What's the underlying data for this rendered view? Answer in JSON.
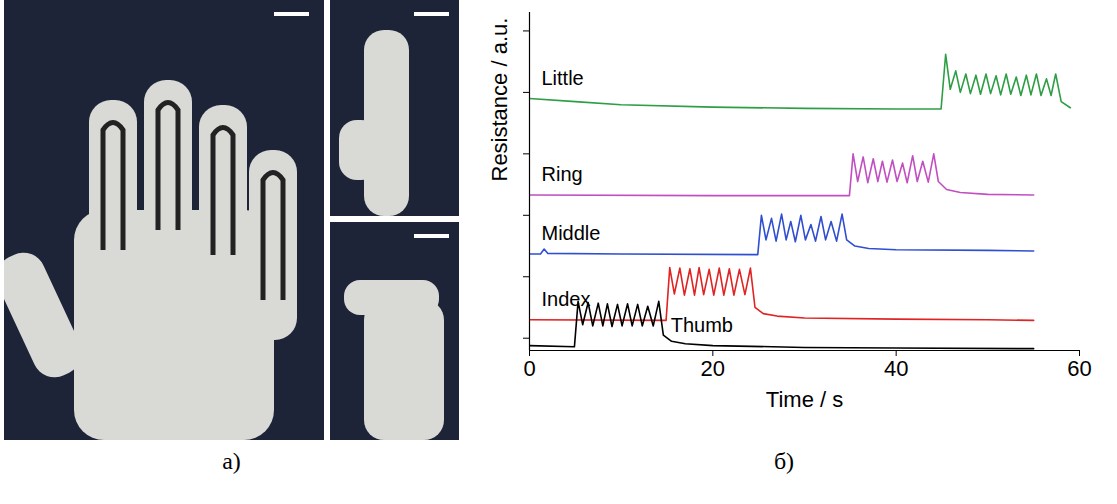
{
  "chart_data": {
    "type": "line",
    "x_label": "Time / s",
    "y_label": "Resistance / a.u.",
    "xlim": [
      0,
      60
    ],
    "xticks": [
      0,
      20,
      40,
      60
    ],
    "ylim": [
      -0.2,
      5.3
    ],
    "yticks": [
      0,
      1,
      2,
      3,
      4,
      5
    ],
    "tick_labels": "x",
    "series": [
      {
        "name": "Little",
        "color": "#2e9e44",
        "x": [
          0,
          5,
          10,
          20,
          30,
          40,
          44.9,
          45.4,
          45.9,
          46.5,
          47.0,
          47.6,
          48.1,
          48.7,
          49.2,
          49.8,
          50.3,
          50.9,
          51.4,
          52.0,
          52.5,
          53.1,
          53.6,
          54.2,
          54.7,
          55.3,
          55.8,
          56.4,
          56.9,
          57.4,
          58.0,
          59.0
        ],
        "values": [
          3.9,
          3.85,
          3.8,
          3.76,
          3.74,
          3.73,
          3.73,
          4.62,
          4.05,
          4.35,
          4.0,
          4.3,
          3.98,
          4.28,
          3.97,
          4.3,
          3.98,
          4.27,
          3.96,
          4.3,
          3.97,
          4.25,
          3.95,
          4.28,
          3.96,
          4.3,
          3.95,
          4.22,
          3.95,
          4.3,
          3.85,
          3.75
        ]
      },
      {
        "name": "Ring",
        "color": "#c24fc2",
        "x": [
          0,
          20,
          34.9,
          35.3,
          35.8,
          36.4,
          36.9,
          37.5,
          38.0,
          38.5,
          39.0,
          39.6,
          40.1,
          40.7,
          41.2,
          41.8,
          42.3,
          42.9,
          43.5,
          44.1,
          44.6,
          45.5,
          47,
          50,
          55
        ],
        "values": [
          2.33,
          2.32,
          2.32,
          3.0,
          2.55,
          2.95,
          2.53,
          2.92,
          2.55,
          2.88,
          2.54,
          2.9,
          2.55,
          2.85,
          2.53,
          2.97,
          2.55,
          2.88,
          2.54,
          3.0,
          2.55,
          2.42,
          2.37,
          2.34,
          2.33
        ]
      },
      {
        "name": "Middle",
        "color": "#2f4fd0",
        "x": [
          0,
          1.2,
          1.6,
          2.0,
          10,
          24.9,
          25.3,
          25.8,
          26.4,
          26.9,
          27.5,
          28.0,
          28.5,
          29.0,
          29.6,
          30.1,
          30.7,
          31.2,
          31.8,
          32.3,
          32.9,
          33.5,
          34.1,
          34.6,
          35.5,
          37,
          40,
          50,
          55
        ],
        "values": [
          1.37,
          1.37,
          1.45,
          1.38,
          1.37,
          1.36,
          2.0,
          1.6,
          1.95,
          1.58,
          2.02,
          1.6,
          1.9,
          1.57,
          2.0,
          1.6,
          1.85,
          1.58,
          1.98,
          1.6,
          1.9,
          1.58,
          2.02,
          1.6,
          1.5,
          1.46,
          1.44,
          1.43,
          1.42
        ]
      },
      {
        "name": "Index",
        "color": "#e02424",
        "x": [
          0,
          14.9,
          15.3,
          15.8,
          16.4,
          16.9,
          17.5,
          18.0,
          18.5,
          19.0,
          19.6,
          20.1,
          20.7,
          21.2,
          21.8,
          22.3,
          22.9,
          23.5,
          24.1,
          24.6,
          25.5,
          27,
          30,
          40,
          50,
          55
        ],
        "values": [
          0.3,
          0.29,
          1.15,
          0.72,
          1.14,
          0.7,
          1.13,
          0.7,
          1.15,
          0.71,
          1.12,
          0.7,
          1.14,
          0.7,
          1.13,
          0.7,
          1.12,
          0.71,
          1.14,
          0.5,
          0.4,
          0.36,
          0.33,
          0.31,
          0.3,
          0.29
        ]
      },
      {
        "name": "Thumb",
        "color": "#000000",
        "x": [
          0,
          4.9,
          5.3,
          5.8,
          6.4,
          6.9,
          7.5,
          8.0,
          8.5,
          9.0,
          9.6,
          10.1,
          10.7,
          11.2,
          11.8,
          12.3,
          12.9,
          13.5,
          14.1,
          14.6,
          15.5,
          17,
          20,
          30,
          40,
          55
        ],
        "values": [
          -0.12,
          -0.14,
          0.6,
          0.22,
          0.58,
          0.2,
          0.57,
          0.2,
          0.56,
          0.19,
          0.55,
          0.2,
          0.56,
          0.2,
          0.55,
          0.2,
          0.52,
          0.2,
          0.6,
          0.05,
          -0.05,
          -0.09,
          -0.12,
          -0.15,
          -0.16,
          -0.17
        ]
      }
    ]
  },
  "captions": [
    "а)",
    "б)"
  ]
}
